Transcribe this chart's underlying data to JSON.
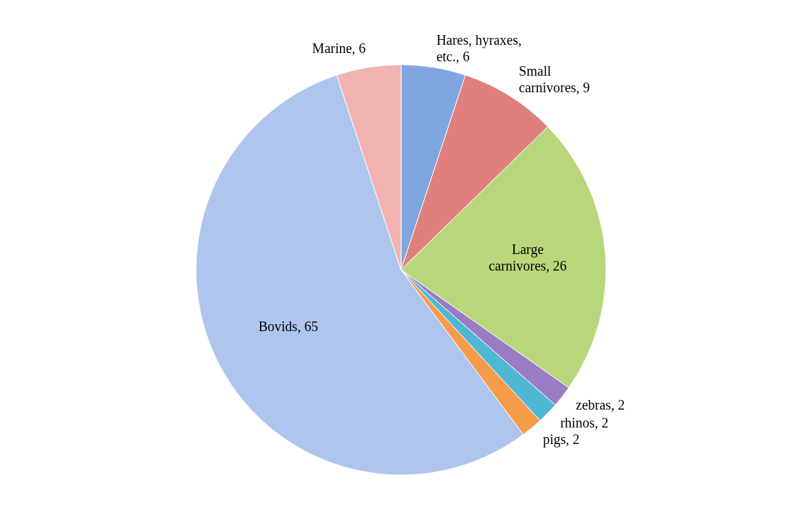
{
  "chart_data": {
    "type": "pie",
    "categories": [
      "Hares, hyraxes, etc.",
      "Small carnivores",
      "Large carnivores",
      "zebras",
      "rhinos",
      "pigs",
      "Bovids",
      "Marine"
    ],
    "values": [
      6,
      9,
      26,
      2,
      2,
      2,
      65,
      6
    ],
    "value_labels": [
      ", 6",
      ", 9",
      ", 26",
      ", 2",
      ", 2",
      ", 2",
      ", 65",
      ", 6"
    ],
    "colors": [
      "#7fa6e0",
      "#e0807e",
      "#b8d77a",
      "#9a7cc4",
      "#4fb8d4",
      "#f59b4a",
      "#aec6ee",
      "#f2b3b3"
    ]
  }
}
